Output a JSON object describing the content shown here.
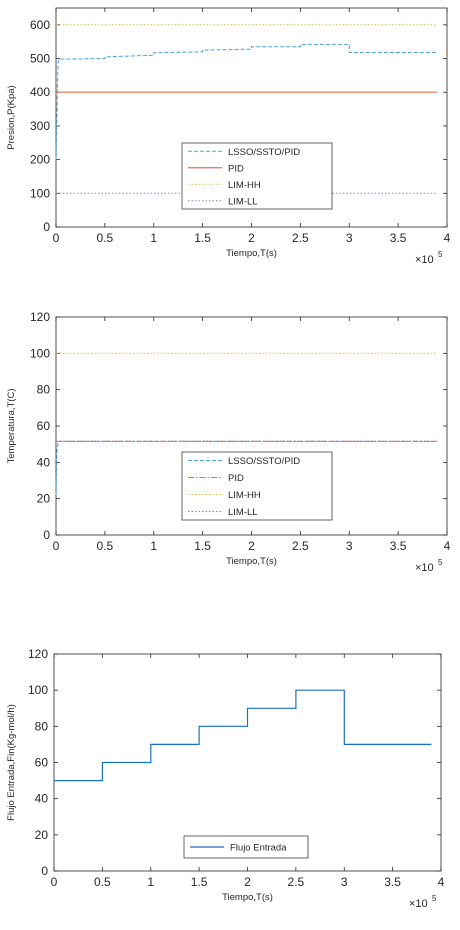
{
  "chart_data": [
    {
      "type": "line",
      "xlabel": "Tiempo,T(s)",
      "ylabel": "Presion,P(Kpa)",
      "x_multiplier": "×10",
      "x_exponent": "5",
      "xlim": [
        0,
        4
      ],
      "ylim": [
        0,
        650
      ],
      "xticks": [
        "0",
        "0.5",
        "1",
        "1.5",
        "2",
        "2.5",
        "3",
        "3.5",
        "4"
      ],
      "yticks": [
        "0",
        "100",
        "200",
        "300",
        "400",
        "500",
        "600"
      ],
      "grid": false,
      "legend_position": "lower-center",
      "series": [
        {
          "name": "LSSO/SSTO/PID",
          "color": "#4d9fd6",
          "style": "dashed",
          "x": [
            0,
            0.02,
            0.03,
            0.5,
            0.5,
            1.0,
            1.0,
            1.5,
            1.5,
            2.0,
            2.0,
            2.5,
            2.5,
            3.0,
            3.0,
            3.9
          ],
          "y": [
            200,
            485,
            498,
            500,
            505,
            510,
            517,
            520,
            525,
            528,
            535,
            535,
            542,
            542,
            518,
            518
          ]
        },
        {
          "name": "PID",
          "color": "#e0754a",
          "style": "solid",
          "x": [
            0,
            3.9
          ],
          "y": [
            400,
            400
          ]
        },
        {
          "name": "LIM-HH",
          "color": "#e2b84a",
          "style": "dotted",
          "x": [
            0,
            3.9
          ],
          "y": [
            600,
            600
          ]
        },
        {
          "name": "LIM-LL",
          "color": "#a278c4",
          "style": "dotted",
          "x": [
            0,
            3.9
          ],
          "y": [
            100,
            100
          ]
        }
      ]
    },
    {
      "type": "line",
      "xlabel": "Tiempo,T(s)",
      "ylabel": "Temperatura,T(C)",
      "x_multiplier": "×10",
      "x_exponent": "5",
      "xlim": [
        0,
        4
      ],
      "ylim": [
        0,
        120
      ],
      "xticks": [
        "0",
        "0.5",
        "1",
        "1.5",
        "2",
        "2.5",
        "3",
        "3.5",
        "4"
      ],
      "yticks": [
        "0",
        "20",
        "40",
        "60",
        "80",
        "100",
        "120"
      ],
      "grid": false,
      "legend_position": "lower-center",
      "series": [
        {
          "name": "LSSO/SSTO/PID",
          "color": "#4d9fd6",
          "style": "dashed",
          "x": [
            0,
            0.01,
            0.03,
            3.9
          ],
          "y": [
            22,
            48,
            51.5,
            51.5
          ]
        },
        {
          "name": "PID",
          "color": "#e0754a",
          "style": "dashdot",
          "x": [
            0,
            3.9
          ],
          "y": [
            51.5,
            51.5
          ]
        },
        {
          "name": "LIM-HH",
          "color": "#e2b84a",
          "style": "dotted",
          "x": [
            0,
            3.9
          ],
          "y": [
            100,
            100
          ]
        },
        {
          "name": "LIM-LL",
          "color": "#a278c4",
          "style": "dotted",
          "x": [
            0,
            3.9
          ],
          "y": [
            51.7,
            51.7
          ]
        }
      ]
    },
    {
      "type": "line",
      "xlabel": "Tiempo,T(s)",
      "ylabel": "Flujo Entrada,Fin(Kg-mol/h)",
      "x_multiplier": "×10",
      "x_exponent": "5",
      "xlim": [
        0,
        4
      ],
      "ylim": [
        0,
        120
      ],
      "xticks": [
        "0",
        "0.5",
        "1",
        "1.5",
        "2",
        "2.5",
        "3",
        "3.5",
        "4"
      ],
      "yticks": [
        "0",
        "20",
        "40",
        "60",
        "80",
        "100",
        "120"
      ],
      "grid": false,
      "legend_position": "lower-center",
      "series": [
        {
          "name": "Flujo Entrada",
          "color": "#1f6fb5",
          "style": "solid",
          "x": [
            0,
            0.5,
            0.5,
            1.0,
            1.0,
            1.5,
            1.5,
            2.0,
            2.0,
            2.5,
            2.5,
            3.0,
            3.0,
            3.9
          ],
          "y": [
            50,
            50,
            60,
            60,
            70,
            70,
            80,
            80,
            90,
            90,
            100,
            100,
            70,
            70
          ]
        }
      ]
    }
  ]
}
